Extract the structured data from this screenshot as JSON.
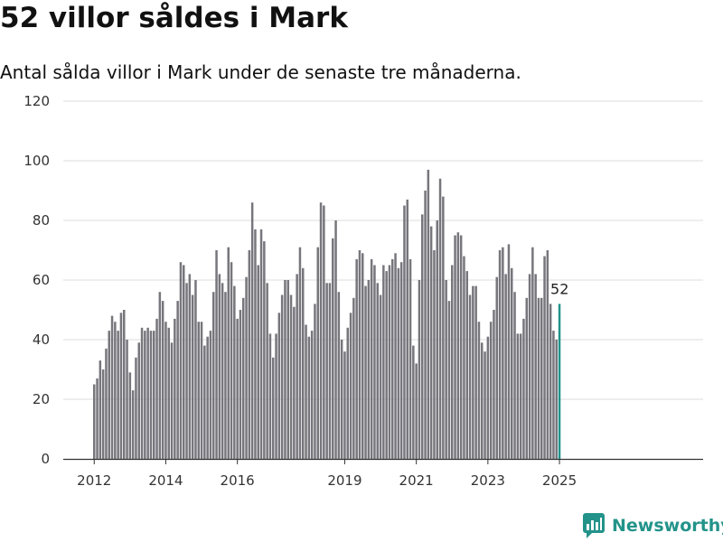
{
  "title": "52 villor såldes i Mark",
  "subtitle": "Antal sålda villor i Mark under de senaste tre månaderna.",
  "brand": {
    "name": "Newsworthy",
    "color": "#23938a",
    "icon": "newsworthy-logo-icon"
  },
  "colors": {
    "bar": "#77767c",
    "highlight": "#23938a",
    "grid": "#dddddd",
    "axis": "#333333"
  },
  "chart_data": {
    "type": "bar",
    "title": "52 villor såldes i Mark",
    "subtitle": "Antal sålda villor i Mark under de senaste tre månaderna.",
    "ylim": [
      0,
      120
    ],
    "yticks": [
      0,
      20,
      40,
      60,
      80,
      100,
      120
    ],
    "grid": true,
    "legend": "none",
    "x_start": "2012-01",
    "xticks": [
      "2012",
      "2014",
      "2016",
      "2019",
      "2021",
      "2023",
      "2025"
    ],
    "highlight_label": "52",
    "series": [
      {
        "values": [
          25,
          27,
          33,
          30,
          37,
          43,
          48,
          46,
          43,
          49,
          50,
          40,
          29,
          23,
          34,
          39,
          44,
          43,
          44,
          43,
          43,
          47,
          56,
          53,
          46,
          44,
          39,
          47,
          53,
          66,
          65,
          59,
          62,
          55,
          60,
          46,
          46,
          38,
          41,
          43,
          56,
          70,
          62,
          59,
          56,
          71,
          66,
          58,
          47,
          50,
          54,
          61,
          70,
          86,
          77,
          65,
          77,
          73,
          59,
          42,
          34,
          42,
          49,
          55,
          60,
          60,
          55,
          51,
          62,
          71,
          64,
          45,
          41,
          43,
          52,
          71,
          86,
          85,
          59,
          59,
          74,
          80,
          56,
          40,
          36,
          44,
          49,
          54,
          67,
          70,
          69,
          58,
          60,
          67,
          65,
          59,
          55,
          65,
          63,
          65,
          67,
          69,
          64,
          66,
          85,
          87,
          67,
          38,
          32,
          60,
          82,
          90,
          97,
          78,
          70,
          80,
          94,
          88,
          60,
          53,
          65,
          75,
          76,
          75,
          68,
          63,
          55,
          58,
          58,
          46,
          39,
          36,
          41,
          46,
          50,
          61,
          70,
          71,
          62,
          72,
          64,
          56,
          42,
          42,
          47,
          54,
          62,
          71,
          62,
          54,
          54,
          68,
          70,
          52,
          43,
          40,
          52
        ]
      }
    ]
  }
}
